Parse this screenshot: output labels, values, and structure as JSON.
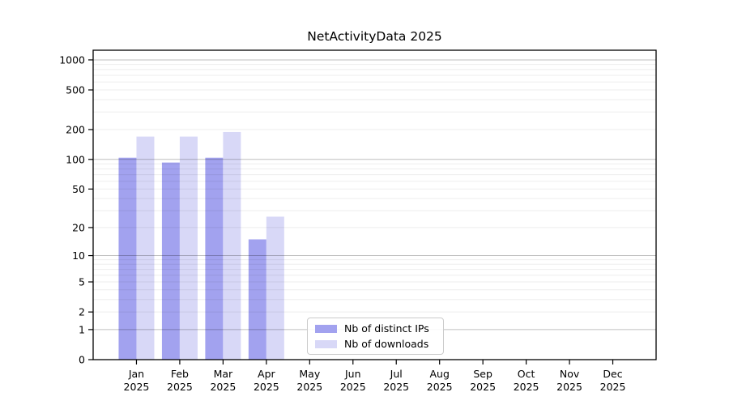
{
  "figure": {
    "title": "NetActivityData 2025"
  },
  "chart_data": {
    "type": "bar",
    "title": "NetActivityData 2025",
    "xlabel": "",
    "ylabel": "",
    "categories": [
      "Jan 2025",
      "Feb 2025",
      "Mar 2025",
      "Apr 2025",
      "May 2025",
      "Jun 2025",
      "Jul 2025",
      "Aug 2025",
      "Sep 2025",
      "Oct 2025",
      "Nov 2025",
      "Dec 2025"
    ],
    "series": [
      {
        "name": "Nb of distinct IPs",
        "color": "#a2a2ef",
        "values": [
          104,
          93,
          104,
          15,
          0,
          0,
          0,
          0,
          0,
          0,
          0,
          0
        ]
      },
      {
        "name": "Nb of downloads",
        "color": "#d8d8f7",
        "values": [
          170,
          170,
          189,
          26,
          0,
          0,
          0,
          0,
          0,
          0,
          0,
          0
        ]
      }
    ],
    "y_scale": "log(1+x)",
    "y_ticks": [
      0,
      1,
      2,
      5,
      10,
      20,
      50,
      100,
      200,
      500,
      1000
    ],
    "ylim": [
      0,
      1250
    ],
    "grid": true,
    "legend_position": "bottom-center-inside"
  }
}
